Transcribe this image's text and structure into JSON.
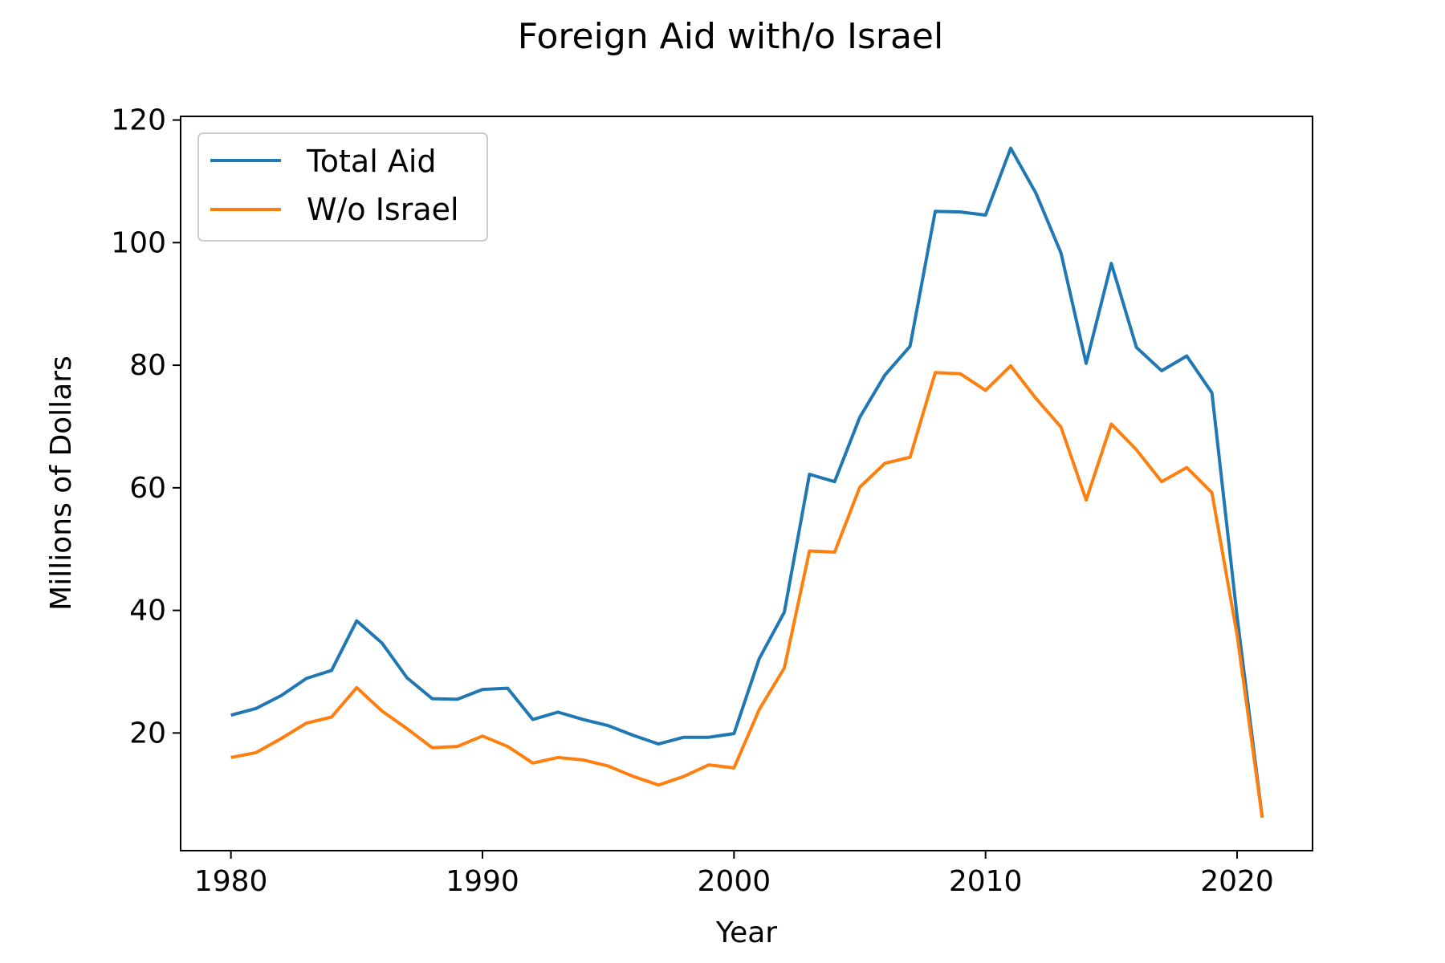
{
  "chart_data": {
    "type": "line",
    "title": "Foreign Aid with/o Israel",
    "xlabel": "Year",
    "ylabel": "Millions of Dollars",
    "xlim": [
      1978,
      2023
    ],
    "ylim": [
      0.8,
      120.6
    ],
    "x_ticks": [
      1980,
      1990,
      2000,
      2010,
      2020
    ],
    "y_ticks": [
      20,
      40,
      60,
      80,
      100,
      120
    ],
    "grid": false,
    "legend_position": "top-left",
    "x": [
      1980,
      1981,
      1982,
      1983,
      1984,
      1985,
      1986,
      1987,
      1988,
      1989,
      1990,
      1991,
      1992,
      1993,
      1994,
      1995,
      1996,
      1997,
      1998,
      1999,
      2000,
      2001,
      2002,
      2003,
      2004,
      2005,
      2006,
      2007,
      2008,
      2009,
      2010,
      2011,
      2012,
      2013,
      2014,
      2015,
      2016,
      2017,
      2018,
      2019,
      2020,
      2021
    ],
    "series": [
      {
        "name": "Total Aid",
        "color": "#1f77b4",
        "values": [
          22.9,
          24.0,
          26.1,
          28.9,
          30.2,
          38.3,
          34.7,
          29.0,
          25.6,
          25.5,
          27.1,
          27.3,
          22.2,
          23.4,
          22.2,
          21.2,
          19.6,
          18.2,
          19.3,
          19.3,
          19.9,
          32.1,
          39.7,
          62.2,
          61.0,
          71.5,
          78.4,
          83.1,
          105.1,
          105.0,
          104.5,
          115.4,
          108.1,
          98.3,
          80.3,
          96.6,
          82.9,
          79.1,
          81.5,
          75.5,
          39.0,
          6.2
        ]
      },
      {
        "name": "W/o Israel",
        "color": "#ff7f0e",
        "values": [
          16.0,
          16.8,
          19.1,
          21.6,
          22.6,
          27.4,
          23.6,
          20.7,
          17.6,
          17.8,
          19.5,
          17.8,
          15.1,
          16.0,
          15.6,
          14.6,
          12.9,
          11.5,
          12.9,
          14.8,
          14.3,
          23.8,
          30.6,
          49.7,
          49.5,
          60.1,
          64.0,
          65.0,
          78.8,
          78.6,
          75.9,
          79.9,
          74.6,
          69.9,
          58.0,
          70.4,
          66.2,
          61.0,
          63.3,
          59.2,
          36.0,
          6.2
        ]
      }
    ]
  }
}
